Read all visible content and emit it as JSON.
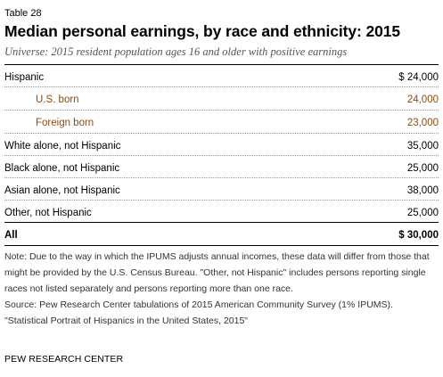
{
  "table_label": "Table 28",
  "title": "Median personal earnings, by race and ethnicity: 2015",
  "universe": "Universe: 2015 resident population ages 16 and older with positive earnings",
  "rows": [
    {
      "name": "Hispanic",
      "value": "$ 24,000",
      "type": "main"
    },
    {
      "name": "U.S. born",
      "value": "24,000",
      "type": "sub"
    },
    {
      "name": "Foreign born",
      "value": "23,000",
      "type": "sub"
    },
    {
      "name": "White alone, not Hispanic",
      "value": "35,000",
      "type": "main"
    },
    {
      "name": "Black alone, not Hispanic",
      "value": "25,000",
      "type": "main"
    },
    {
      "name": "Asian alone, not Hispanic",
      "value": "38,000",
      "type": "main"
    },
    {
      "name": "Other, not Hispanic",
      "value": "25,000",
      "type": "main"
    }
  ],
  "total": {
    "name": "All",
    "value": "$ 30,000"
  },
  "note": "Note: Due to the way in which the IPUMS adjusts annual incomes, these data will differ from those that might be provided by the U.S. Census Bureau. \"Other, not Hispanic\" includes persons reporting single races not listed separately and persons reporting more than one race.",
  "source": "Source: Pew Research Center tabulations of 2015 American Community Survey (1% IPUMS).",
  "source_title": "\"Statistical Portrait of Hispanics in the United States, 2015\"",
  "footer": "PEW RESEARCH CENTER"
}
